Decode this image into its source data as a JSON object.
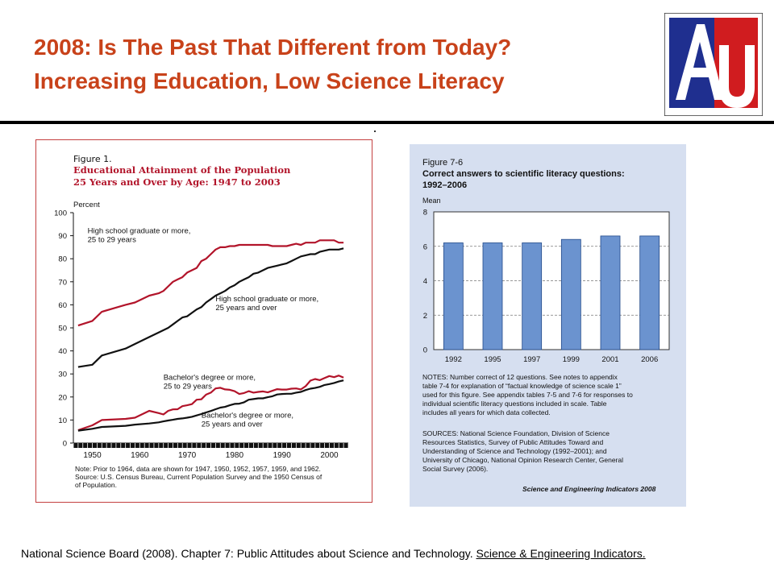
{
  "slide": {
    "title_line1": "2008: Is The Past That Different from Today?",
    "title_line2": "Increasing Education, Low Science Literacy",
    "logo_text": "AU",
    "citation_text": "National Science Board (2008). Chapter 7: Public Attitudes about Science and Technology. ",
    "citation_link": "Science & Engineering Indicators."
  },
  "colors": {
    "title": "#c8421a",
    "fig1_red": "#b2142a",
    "fig1_black": "#111111",
    "fig2_bar": "#6b93cf",
    "fig2_panel": "#d6dff0",
    "logo_blue": "#1f2f8f",
    "logo_red": "#d01c1f"
  },
  "fig1": {
    "figure_label": "Figure 1.",
    "title_line1": "Educational Attainment of the Population",
    "title_line2": "25 Years and Over by Age: 1947 to 2003",
    "note_line1": "Note: Prior to 1964, data are shown for 1947, 1950, 1952, 1957, 1959, and 1962.",
    "note_line2": "Source: U.S. Census Bureau, Current Population Survey and the 1950 Census of",
    "note_line3": "of Population."
  },
  "fig2": {
    "figure_label": "Figure 7-6",
    "title_line1": "Correct answers to scientific literacy questions:",
    "title_line2": "1992–2006",
    "notes_lines": [
      "NOTES: Number correct of 12 questions. See notes to appendix",
      "table 7-4 for explanation of “factual knowledge of science scale 1”",
      "used for this figure. See appendix tables 7-5 and 7-6 for responses to",
      "individual scientific literacy questions included in scale. Table",
      "includes all years for which data collected."
    ],
    "sources_lines": [
      "SOURCES: National Science Foundation, Division of Science",
      "Resources Statistics, Survey of Public Attitudes Toward and",
      "Understanding of Science and Technology (1992–2001); and",
      "University of Chicago, National Opinion Research Center, General",
      "Social Survey (2006)."
    ],
    "credit": "Science and Engineering Indicators 2008"
  },
  "chart_data": [
    {
      "type": "line",
      "title": "Educational Attainment of the Population 25 Years and Over by Age: 1947 to 2003",
      "ylabel": "Percent",
      "xlabel": "",
      "xlim": [
        1946,
        2004
      ],
      "ylim": [
        0,
        100
      ],
      "x_ticks": [
        1950,
        1960,
        1970,
        1980,
        1990,
        2000
      ],
      "y_ticks": [
        0,
        10,
        20,
        30,
        40,
        50,
        60,
        70,
        80,
        90,
        100
      ],
      "grid": false,
      "series": [
        {
          "name": "High school graduate or more, 25 to 29 years",
          "label_lines": [
            "High school graduate or more,",
            "25 to 29 years"
          ],
          "color": "#b2142a",
          "x": [
            1947,
            1950,
            1952,
            1957,
            1959,
            1962,
            1964,
            1965,
            1966,
            1967,
            1968,
            1969,
            1970,
            1971,
            1972,
            1973,
            1974,
            1975,
            1976,
            1977,
            1978,
            1979,
            1980,
            1981,
            1982,
            1983,
            1984,
            1985,
            1986,
            1987,
            1988,
            1989,
            1990,
            1991,
            1992,
            1993,
            1994,
            1995,
            1996,
            1997,
            1998,
            1999,
            2000,
            2001,
            2002,
            2003
          ],
          "values": [
            51,
            53,
            57,
            60,
            61,
            64,
            65,
            66,
            68,
            70,
            71,
            72,
            74,
            75,
            76,
            79,
            80,
            82,
            84,
            85,
            85,
            85.5,
            85.5,
            86,
            86,
            86,
            86,
            86,
            86,
            86,
            85.5,
            85.5,
            85.5,
            85.5,
            86,
            86.5,
            86,
            87,
            87,
            87,
            88,
            88,
            88,
            88,
            87,
            87
          ]
        },
        {
          "name": "High school graduate or more, 25 years and over",
          "label_lines": [
            "High school graduate or more,",
            "25 years and over"
          ],
          "color": "#111111",
          "x": [
            1947,
            1950,
            1952,
            1957,
            1959,
            1962,
            1964,
            1965,
            1966,
            1967,
            1968,
            1969,
            1970,
            1971,
            1972,
            1973,
            1974,
            1975,
            1976,
            1977,
            1978,
            1979,
            1980,
            1981,
            1982,
            1983,
            1984,
            1985,
            1986,
            1987,
            1988,
            1989,
            1990,
            1991,
            1992,
            1993,
            1994,
            1995,
            1996,
            1997,
            1998,
            1999,
            2000,
            2001,
            2002,
            2003
          ],
          "values": [
            33,
            34,
            38,
            41,
            43,
            46,
            48,
            49,
            50,
            51.5,
            53,
            54.5,
            55,
            56.5,
            58,
            59,
            61,
            62.5,
            64,
            65,
            66,
            67.5,
            68.5,
            70,
            71,
            72,
            73.5,
            74,
            75,
            76,
            76.5,
            77,
            77.5,
            78,
            79,
            80,
            81,
            81.5,
            82,
            82,
            83,
            83.5,
            84,
            84,
            84,
            84.5
          ]
        },
        {
          "name": "Bachelor's degree or more, 25 to 29 years",
          "label_lines": [
            "Bachelor's degree or more,",
            "25 to 29 years"
          ],
          "color": "#b2142a",
          "x": [
            1947,
            1950,
            1952,
            1957,
            1959,
            1962,
            1964,
            1965,
            1966,
            1967,
            1968,
            1969,
            1970,
            1971,
            1972,
            1973,
            1974,
            1975,
            1976,
            1977,
            1978,
            1979,
            1980,
            1981,
            1982,
            1983,
            1984,
            1985,
            1986,
            1987,
            1988,
            1989,
            1990,
            1991,
            1992,
            1993,
            1994,
            1995,
            1996,
            1997,
            1998,
            1999,
            2000,
            2001,
            2002,
            2003
          ],
          "values": [
            5.6,
            7.7,
            10,
            10.5,
            11,
            14,
            13,
            12.4,
            14,
            14.6,
            14.7,
            16,
            16.4,
            16.9,
            18.8,
            19,
            21,
            21.9,
            23.7,
            24,
            23.3,
            23.1,
            22.5,
            21.3,
            21.7,
            22.5,
            21.9,
            22.2,
            22.4,
            22.0,
            22.7,
            23.4,
            23.2,
            23.2,
            23.6,
            23.7,
            23.3,
            24.7,
            27.1,
            27.8,
            27.3,
            28.2,
            29.1,
            28.6,
            29.3,
            28.4
          ]
        },
        {
          "name": "Bachelor's degree or more, 25 years and over",
          "label_lines": [
            "Bachelor's degree or more,",
            "25 years and over"
          ],
          "color": "#111111",
          "x": [
            1947,
            1950,
            1952,
            1957,
            1959,
            1962,
            1964,
            1965,
            1966,
            1967,
            1968,
            1969,
            1970,
            1971,
            1972,
            1973,
            1974,
            1975,
            1976,
            1977,
            1978,
            1979,
            1980,
            1981,
            1982,
            1983,
            1984,
            1985,
            1986,
            1987,
            1988,
            1989,
            1990,
            1991,
            1992,
            1993,
            1994,
            1995,
            1996,
            1997,
            1998,
            1999,
            2000,
            2001,
            2002,
            2003
          ],
          "values": [
            5.4,
            6.2,
            7,
            7.5,
            8,
            8.5,
            9,
            9.4,
            9.8,
            10.1,
            10.5,
            10.7,
            11,
            11.4,
            12,
            12.6,
            13.3,
            13.9,
            14.7,
            15.4,
            15.7,
            16.4,
            17,
            17.1,
            17.7,
            18.8,
            19.1,
            19.4,
            19.4,
            19.9,
            20.3,
            21.1,
            21.3,
            21.4,
            21.4,
            21.9,
            22.2,
            23,
            23.6,
            23.9,
            24.4,
            25.2,
            25.6,
            26.1,
            26.7,
            27.2
          ]
        }
      ]
    },
    {
      "type": "bar",
      "title": "Correct answers to scientific literacy questions: 1992–2006",
      "ylabel": "Mean",
      "xlabel": "",
      "ylim": [
        0,
        8
      ],
      "y_ticks": [
        0,
        2,
        4,
        6,
        8
      ],
      "grid": true,
      "categories": [
        "1992",
        "1995",
        "1997",
        "1999",
        "2001",
        "2006"
      ],
      "values": [
        6.2,
        6.2,
        6.2,
        6.4,
        6.6,
        6.6
      ]
    }
  ]
}
